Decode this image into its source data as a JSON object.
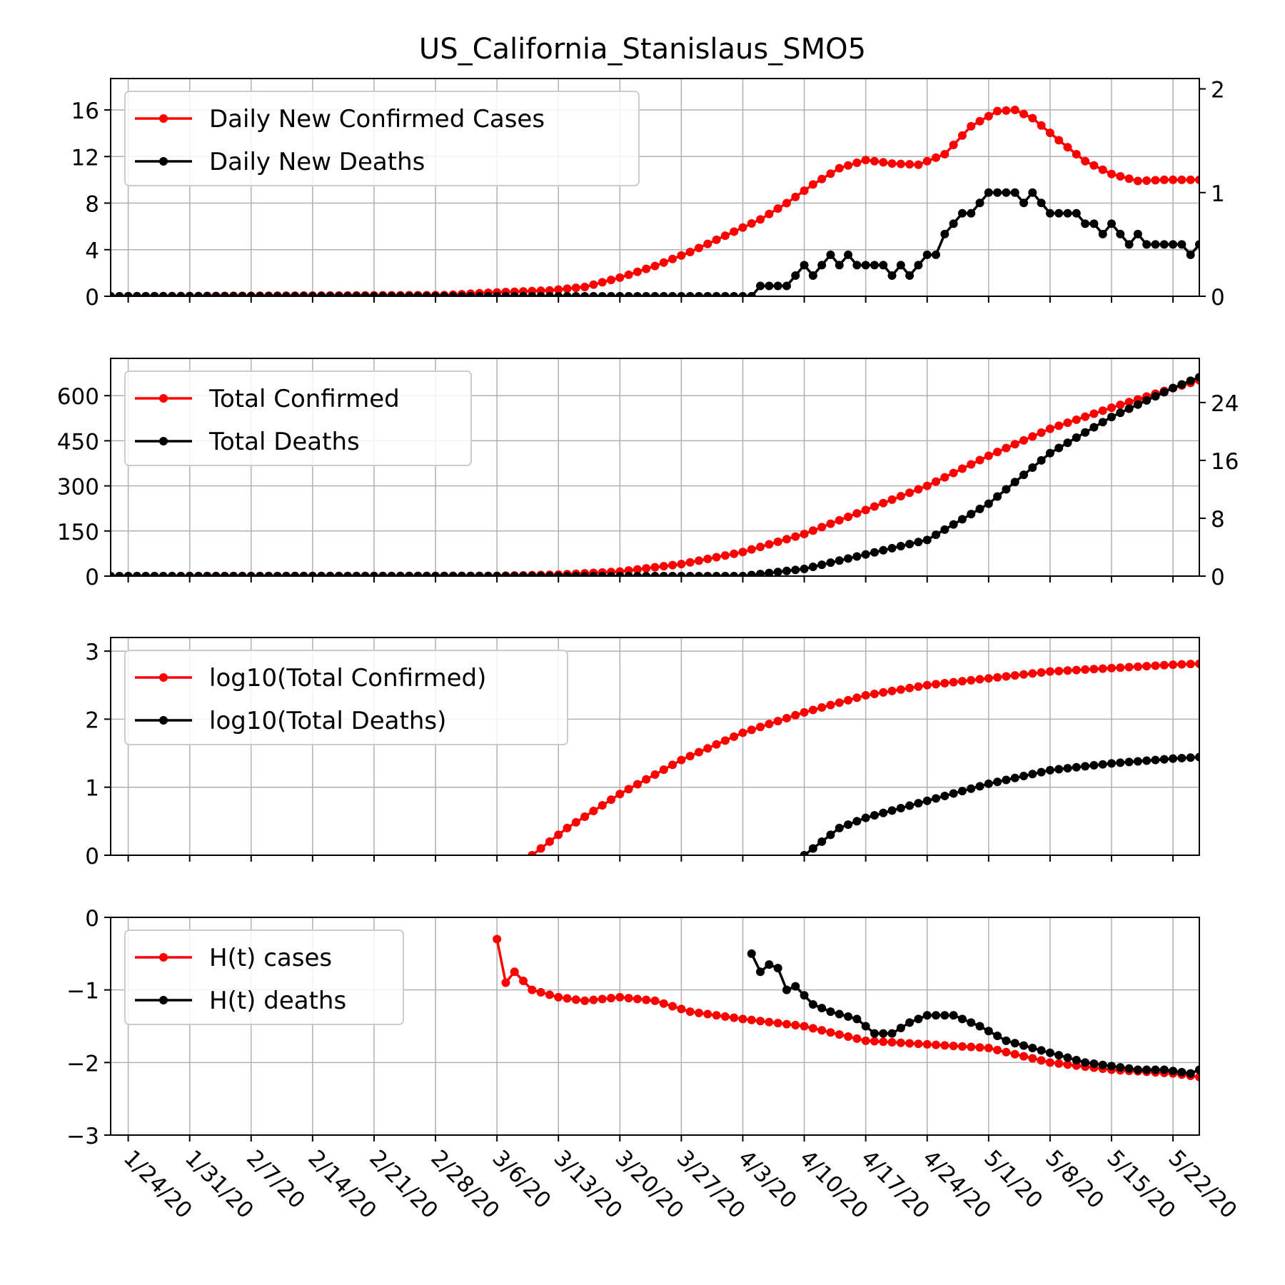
{
  "title": "US_California_Stanislaus_SMO5",
  "x_dates": [
    "1/24/20",
    "1/31/20",
    "2/7/20",
    "2/14/20",
    "2/21/20",
    "2/28/20",
    "3/6/20",
    "3/13/20",
    "3/20/20",
    "3/27/20",
    "4/3/20",
    "4/10/20",
    "4/17/20",
    "4/24/20",
    "5/1/20",
    "5/8/20",
    "5/15/20",
    "5/22/20"
  ],
  "colors": {
    "cases": "#ff0000",
    "deaths": "#000000",
    "grid": "#b0b0b0"
  },
  "chart_data": [
    {
      "type": "line",
      "x_start": "1/22/20",
      "x_end": "5/25/20",
      "ylim_left": [
        0,
        18.7
      ],
      "yticks_left": [
        "0",
        "4",
        "8",
        "12",
        "16"
      ],
      "ylim_right": [
        0,
        2.1
      ],
      "yticks_right": [
        "0",
        "1",
        "2"
      ],
      "grid": true,
      "legend_position": "top-left",
      "series": [
        {
          "name": "Daily New Confirmed Cases",
          "axis": "left",
          "points": [
            [
              "1/22/20",
              0
            ],
            [
              "2/29/20",
              0.1
            ],
            [
              "3/5/20",
              0.3
            ],
            [
              "3/12/20",
              0.5
            ],
            [
              "3/16/20",
              0.8
            ],
            [
              "3/20/20",
              1.6
            ],
            [
              "3/24/20",
              2.6
            ],
            [
              "3/28/20",
              3.8
            ],
            [
              "4/1/20",
              5.2
            ],
            [
              "4/5/20",
              6.6
            ],
            [
              "4/8/20",
              8.0
            ],
            [
              "4/11/20",
              9.6
            ],
            [
              "4/14/20",
              11.0
            ],
            [
              "4/17/20",
              11.7
            ],
            [
              "4/20/20",
              11.4
            ],
            [
              "4/23/20",
              11.3
            ],
            [
              "4/26/20",
              12.2
            ],
            [
              "4/29/20",
              14.6
            ],
            [
              "5/2/20",
              15.9
            ],
            [
              "5/4/20",
              16.0
            ],
            [
              "5/6/20",
              15.3
            ],
            [
              "5/9/20",
              13.4
            ],
            [
              "5/12/20",
              11.6
            ],
            [
              "5/15/20",
              10.5
            ],
            [
              "5/18/20",
              9.9
            ],
            [
              "5/21/20",
              10.0
            ],
            [
              "5/25/20",
              10.0
            ]
          ]
        },
        {
          "name": "Daily New Deaths",
          "axis": "right",
          "points": [
            [
              "1/22/20",
              0
            ],
            [
              "4/4/20",
              0
            ],
            [
              "4/5/20",
              0.1
            ],
            [
              "4/6/20",
              0.1
            ],
            [
              "4/7/20",
              0.1
            ],
            [
              "4/8/20",
              0.1
            ],
            [
              "4/9/20",
              0.2
            ],
            [
              "4/10/20",
              0.3
            ],
            [
              "4/11/20",
              0.2
            ],
            [
              "4/12/20",
              0.3
            ],
            [
              "4/13/20",
              0.4
            ],
            [
              "4/14/20",
              0.3
            ],
            [
              "4/15/20",
              0.4
            ],
            [
              "4/16/20",
              0.3
            ],
            [
              "4/17/20",
              0.3
            ],
            [
              "4/18/20",
              0.3
            ],
            [
              "4/19/20",
              0.3
            ],
            [
              "4/20/20",
              0.2
            ],
            [
              "4/21/20",
              0.3
            ],
            [
              "4/22/20",
              0.2
            ],
            [
              "4/23/20",
              0.3
            ],
            [
              "4/24/20",
              0.4
            ],
            [
              "4/25/20",
              0.4
            ],
            [
              "4/26/20",
              0.6
            ],
            [
              "4/27/20",
              0.7
            ],
            [
              "4/28/20",
              0.8
            ],
            [
              "4/29/20",
              0.8
            ],
            [
              "4/30/20",
              0.9
            ],
            [
              "5/1/20",
              1.0
            ],
            [
              "5/2/20",
              1.0
            ],
            [
              "5/3/20",
              1.0
            ],
            [
              "5/4/20",
              1.0
            ],
            [
              "5/5/20",
              0.9
            ],
            [
              "5/6/20",
              1.0
            ],
            [
              "5/7/20",
              0.9
            ],
            [
              "5/8/20",
              0.8
            ],
            [
              "5/9/20",
              0.8
            ],
            [
              "5/10/20",
              0.8
            ],
            [
              "5/11/20",
              0.8
            ],
            [
              "5/12/20",
              0.7
            ],
            [
              "5/13/20",
              0.7
            ],
            [
              "5/14/20",
              0.6
            ],
            [
              "5/15/20",
              0.7
            ],
            [
              "5/16/20",
              0.6
            ],
            [
              "5/17/20",
              0.5
            ],
            [
              "5/18/20",
              0.6
            ],
            [
              "5/19/20",
              0.5
            ],
            [
              "5/20/20",
              0.5
            ],
            [
              "5/21/20",
              0.5
            ],
            [
              "5/22/20",
              0.5
            ],
            [
              "5/23/20",
              0.5
            ],
            [
              "5/24/20",
              0.4
            ],
            [
              "5/25/20",
              0.5
            ],
            [
              "5/26/20",
              0.5
            ]
          ]
        }
      ]
    },
    {
      "type": "line",
      "x_start": "1/22/20",
      "x_end": "5/25/20",
      "ylim_left": [
        0,
        724
      ],
      "yticks_left": [
        "0",
        "150",
        "300",
        "450",
        "600"
      ],
      "ylim_right": [
        0,
        30.1
      ],
      "yticks_right": [
        "0",
        "8",
        "16",
        "24"
      ],
      "grid": true,
      "legend_position": "top-left",
      "series": [
        {
          "name": "Total Confirmed",
          "axis": "left",
          "points": [
            [
              "1/22/20",
              0
            ],
            [
              "3/6/20",
              1
            ],
            [
              "3/13/20",
              5
            ],
            [
              "3/20/20",
              15
            ],
            [
              "3/27/20",
              40
            ],
            [
              "4/3/20",
              80
            ],
            [
              "4/10/20",
              140
            ],
            [
              "4/17/20",
              220
            ],
            [
              "4/24/20",
              300
            ],
            [
              "5/1/20",
              400
            ],
            [
              "5/8/20",
              490
            ],
            [
              "5/15/20",
              560
            ],
            [
              "5/22/20",
              625
            ],
            [
              "5/26/20",
              660
            ]
          ]
        },
        {
          "name": "Total Deaths",
          "axis": "right",
          "points": [
            [
              "1/22/20",
              0
            ],
            [
              "4/3/20",
              0
            ],
            [
              "4/10/20",
              1
            ],
            [
              "4/17/20",
              3
            ],
            [
              "4/24/20",
              5
            ],
            [
              "5/1/20",
              10
            ],
            [
              "5/8/20",
              17
            ],
            [
              "5/15/20",
              22
            ],
            [
              "5/22/20",
              26
            ],
            [
              "5/26/20",
              28
            ]
          ]
        }
      ]
    },
    {
      "type": "line",
      "x_start": "1/22/20",
      "x_end": "5/25/20",
      "ylim_left": [
        0,
        3.2
      ],
      "yticks_left": [
        "0",
        "1",
        "2",
        "3"
      ],
      "grid": true,
      "legend_position": "top-left",
      "series": [
        {
          "name": "log10(Total Confirmed)",
          "axis": "left",
          "points": [
            [
              "3/10/20",
              0
            ],
            [
              "3/14/20",
              0.4
            ],
            [
              "3/20/20",
              0.9
            ],
            [
              "3/27/20",
              1.4
            ],
            [
              "4/3/20",
              1.8
            ],
            [
              "4/10/20",
              2.1
            ],
            [
              "4/17/20",
              2.35
            ],
            [
              "4/24/20",
              2.5
            ],
            [
              "5/1/20",
              2.6
            ],
            [
              "5/8/20",
              2.7
            ],
            [
              "5/15/20",
              2.75
            ],
            [
              "5/22/20",
              2.8
            ],
            [
              "5/26/20",
              2.82
            ]
          ]
        },
        {
          "name": "log10(Total Deaths)",
          "axis": "left",
          "points": [
            [
              "4/10/20",
              0
            ],
            [
              "4/14/20",
              0.4
            ],
            [
              "4/17/20",
              0.55
            ],
            [
              "4/24/20",
              0.8
            ],
            [
              "5/1/20",
              1.05
            ],
            [
              "5/8/20",
              1.25
            ],
            [
              "5/15/20",
              1.35
            ],
            [
              "5/22/20",
              1.42
            ],
            [
              "5/26/20",
              1.45
            ]
          ]
        }
      ]
    },
    {
      "type": "line",
      "x_start": "1/22/20",
      "x_end": "5/25/20",
      "ylim_left": [
        -3,
        0
      ],
      "yticks_left": [
        "0",
        "−1",
        "−2",
        "−3"
      ],
      "grid": true,
      "legend_position": "top-left",
      "series": [
        {
          "name": "H(t) cases",
          "axis": "left",
          "points": [
            [
              "3/6/20",
              -0.3
            ],
            [
              "3/7/20",
              -0.9
            ],
            [
              "3/8/20",
              -0.75
            ],
            [
              "3/10/20",
              -1.0
            ],
            [
              "3/13/20",
              -1.1
            ],
            [
              "3/16/20",
              -1.15
            ],
            [
              "3/20/20",
              -1.1
            ],
            [
              "3/24/20",
              -1.15
            ],
            [
              "3/28/20",
              -1.3
            ],
            [
              "4/3/20",
              -1.4
            ],
            [
              "4/10/20",
              -1.5
            ],
            [
              "4/17/20",
              -1.7
            ],
            [
              "4/24/20",
              -1.75
            ],
            [
              "5/1/20",
              -1.8
            ],
            [
              "5/8/20",
              -2.0
            ],
            [
              "5/15/20",
              -2.1
            ],
            [
              "5/22/20",
              -2.15
            ],
            [
              "5/25/20",
              -2.2
            ]
          ]
        },
        {
          "name": "H(t) deaths",
          "axis": "left",
          "points": [
            [
              "4/4/20",
              -0.5
            ],
            [
              "4/5/20",
              -0.75
            ],
            [
              "4/6/20",
              -0.65
            ],
            [
              "4/7/20",
              -0.7
            ],
            [
              "4/8/20",
              -1.0
            ],
            [
              "4/9/20",
              -0.95
            ],
            [
              "4/11/20",
              -1.2
            ],
            [
              "4/13/20",
              -1.3
            ],
            [
              "4/16/20",
              -1.4
            ],
            [
              "4/18/20",
              -1.6
            ],
            [
              "4/20/20",
              -1.6
            ],
            [
              "4/22/20",
              -1.45
            ],
            [
              "4/24/20",
              -1.35
            ],
            [
              "4/27/20",
              -1.35
            ],
            [
              "4/30/20",
              -1.5
            ],
            [
              "5/3/20",
              -1.7
            ],
            [
              "5/6/20",
              -1.8
            ],
            [
              "5/9/20",
              -1.9
            ],
            [
              "5/12/20",
              -2.0
            ],
            [
              "5/15/20",
              -2.05
            ],
            [
              "5/18/20",
              -2.1
            ],
            [
              "5/21/20",
              -2.1
            ],
            [
              "5/24/20",
              -2.15
            ],
            [
              "5/25/20",
              -2.1
            ]
          ]
        }
      ]
    }
  ]
}
